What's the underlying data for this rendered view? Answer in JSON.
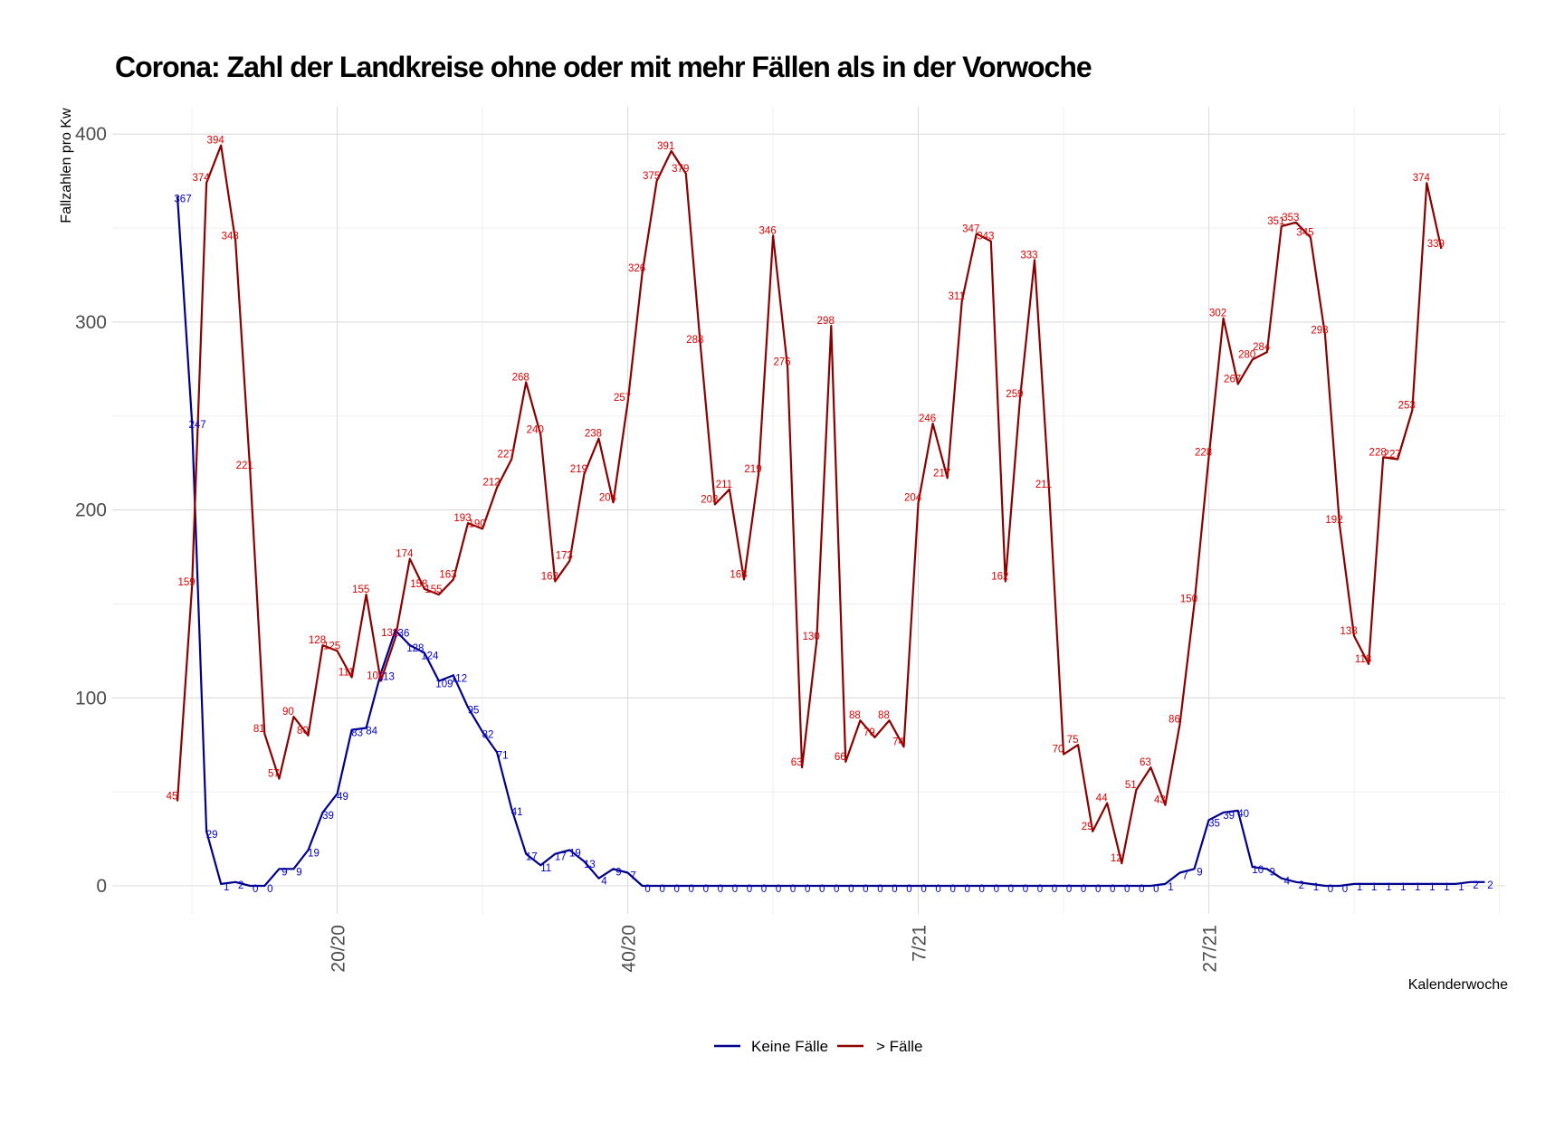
{
  "chart_data": {
    "type": "line",
    "title": "Corona: Zahl der Landkreise ohne oder mit mehr Fällen als in der Vorwoche",
    "xlabel": "Kalenderwoche",
    "ylabel": "Fallzahlen pro Kw",
    "ylim": [
      -30,
      415
    ],
    "y_ticks": [
      0,
      100,
      200,
      300,
      400
    ],
    "x_tick_labels": [
      {
        "label": "20/20",
        "week_index": 11
      },
      {
        "label": "40/20",
        "week_index": 31
      },
      {
        "label": "7/21",
        "week_index": 51
      },
      {
        "label": "27/21",
        "week_index": 71
      }
    ],
    "x_first_week": "10/20",
    "grid": true,
    "legend_position": "bottom",
    "series": [
      {
        "name": "Keine Fälle",
        "color": "#00008b",
        "values": [
          367,
          247,
          29,
          1,
          2,
          0,
          0,
          9,
          9,
          19,
          39,
          49,
          83,
          84,
          113,
          136,
          128,
          124,
          109,
          112,
          95,
          82,
          71,
          41,
          17,
          11,
          17,
          19,
          13,
          4,
          9,
          7,
          0,
          0,
          0,
          0,
          0,
          0,
          0,
          0,
          0,
          0,
          0,
          0,
          0,
          0,
          0,
          0,
          0,
          0,
          0,
          0,
          0,
          0,
          0,
          0,
          0,
          0,
          0,
          0,
          0,
          0,
          0,
          0,
          0,
          0,
          0,
          0,
          1,
          7,
          9,
          35,
          39,
          40,
          10,
          9,
          4,
          2,
          1,
          0,
          0,
          1,
          1,
          1,
          1,
          1,
          1,
          1,
          1,
          2,
          2
        ]
      },
      {
        "name": "> Fälle",
        "color": "#8b0000",
        "values": [
          45,
          159,
          374,
          394,
          343,
          221,
          81,
          57,
          90,
          80,
          128,
          125,
          111,
          155,
          109,
          132,
          174,
          158,
          155,
          163,
          193,
          190,
          212,
          227,
          268,
          240,
          162,
          173,
          219,
          238,
          204,
          257,
          326,
          375,
          391,
          379,
          288,
          203,
          211,
          163,
          219,
          346,
          276,
          63,
          130,
          298,
          66,
          88,
          79,
          88,
          74,
          204,
          246,
          217,
          311,
          347,
          343,
          162,
          259,
          333,
          211,
          70,
          75,
          29,
          44,
          12,
          51,
          63,
          43,
          86,
          150,
          228,
          302,
          267,
          280,
          284,
          351,
          353,
          345,
          293,
          192,
          133,
          118,
          228,
          227,
          253,
          374,
          339
        ]
      }
    ]
  }
}
